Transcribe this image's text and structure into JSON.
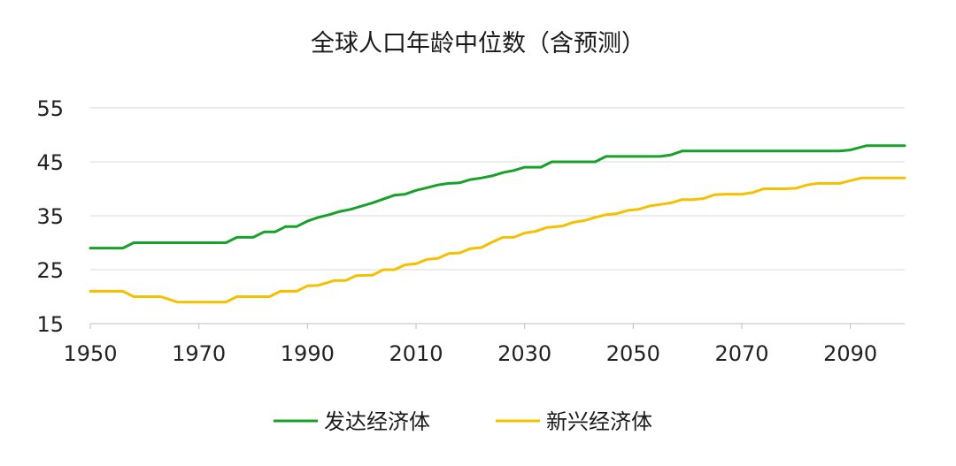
{
  "chart_data": {
    "type": "line",
    "title": "全球人口年龄中位数（含预测）",
    "xlabel": "",
    "ylabel": "",
    "xlim": [
      1950,
      2100
    ],
    "ylim": [
      15,
      55
    ],
    "y_ticks": [
      15,
      25,
      35,
      45,
      55
    ],
    "x_ticks": [
      1950,
      1970,
      1990,
      2010,
      2030,
      2050,
      2070,
      2090
    ],
    "grid": "horizontal",
    "legend_position": "bottom",
    "series": [
      {
        "name": "发达经济体",
        "color": "#17a02a",
        "points": [
          [
            1950,
            29
          ],
          [
            1956,
            29
          ],
          [
            1958,
            30
          ],
          [
            1960,
            30
          ],
          [
            1965,
            30
          ],
          [
            1970,
            30
          ],
          [
            1975,
            30
          ],
          [
            1977,
            31
          ],
          [
            1980,
            31
          ],
          [
            1982,
            32
          ],
          [
            1984,
            32
          ],
          [
            1986,
            33
          ],
          [
            1988,
            33
          ],
          [
            1990,
            34
          ],
          [
            1992,
            34.7
          ],
          [
            1994,
            35.2
          ],
          [
            1996,
            35.8
          ],
          [
            1998,
            36.2
          ],
          [
            2000,
            36.8
          ],
          [
            2002,
            37.4
          ],
          [
            2004,
            38.1
          ],
          [
            2006,
            38.8
          ],
          [
            2008,
            39
          ],
          [
            2010,
            39.7
          ],
          [
            2012,
            40.2
          ],
          [
            2014,
            40.7
          ],
          [
            2016,
            41
          ],
          [
            2018,
            41.1
          ],
          [
            2020,
            41.7
          ],
          [
            2022,
            42
          ],
          [
            2024,
            42.4
          ],
          [
            2026,
            43
          ],
          [
            2028,
            43.4
          ],
          [
            2030,
            44
          ],
          [
            2033,
            44
          ],
          [
            2035,
            45
          ],
          [
            2040,
            45
          ],
          [
            2043,
            45
          ],
          [
            2045,
            46
          ],
          [
            2050,
            46
          ],
          [
            2055,
            46
          ],
          [
            2057,
            46.3
          ],
          [
            2059,
            47
          ],
          [
            2065,
            47
          ],
          [
            2070,
            47
          ],
          [
            2080,
            47
          ],
          [
            2088,
            47
          ],
          [
            2090,
            47.2
          ],
          [
            2093,
            48
          ],
          [
            2100,
            48
          ]
        ]
      },
      {
        "name": "新兴经济体",
        "color": "#f5c000",
        "points": [
          [
            1950,
            21
          ],
          [
            1956,
            21
          ],
          [
            1958,
            20
          ],
          [
            1963,
            20
          ],
          [
            1966,
            19
          ],
          [
            1970,
            19
          ],
          [
            1975,
            19
          ],
          [
            1977,
            20
          ],
          [
            1983,
            20
          ],
          [
            1985,
            21
          ],
          [
            1988,
            21
          ],
          [
            1990,
            22
          ],
          [
            1992,
            22.1
          ],
          [
            1995,
            23
          ],
          [
            1997,
            23
          ],
          [
            1999,
            23.9
          ],
          [
            2002,
            24
          ],
          [
            2004,
            25
          ],
          [
            2006,
            25
          ],
          [
            2008,
            25.9
          ],
          [
            2010,
            26.1
          ],
          [
            2012,
            26.9
          ],
          [
            2014,
            27.1
          ],
          [
            2016,
            28
          ],
          [
            2018,
            28.1
          ],
          [
            2020,
            28.9
          ],
          [
            2022,
            29.1
          ],
          [
            2024,
            30.1
          ],
          [
            2026,
            31
          ],
          [
            2028,
            31
          ],
          [
            2030,
            31.8
          ],
          [
            2032,
            32.1
          ],
          [
            2034,
            32.8
          ],
          [
            2037,
            33.1
          ],
          [
            2039,
            33.8
          ],
          [
            2041,
            34.1
          ],
          [
            2043,
            34.7
          ],
          [
            2045,
            35.2
          ],
          [
            2047,
            35.4
          ],
          [
            2049,
            36
          ],
          [
            2051,
            36.2
          ],
          [
            2053,
            36.8
          ],
          [
            2055,
            37.1
          ],
          [
            2057,
            37.4
          ],
          [
            2059,
            38
          ],
          [
            2061,
            38
          ],
          [
            2063,
            38.2
          ],
          [
            2065,
            38.9
          ],
          [
            2067,
            39
          ],
          [
            2070,
            39
          ],
          [
            2072,
            39.3
          ],
          [
            2074,
            40
          ],
          [
            2078,
            40
          ],
          [
            2080,
            40.1
          ],
          [
            2082,
            40.7
          ],
          [
            2084,
            41
          ],
          [
            2088,
            41
          ],
          [
            2090,
            41.5
          ],
          [
            2092,
            42
          ],
          [
            2100,
            42
          ]
        ]
      }
    ]
  }
}
